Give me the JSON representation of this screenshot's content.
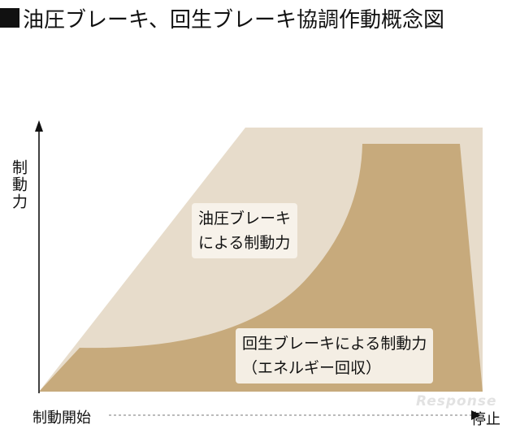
{
  "title": "油圧ブレーキ、回生ブレーキ協調作動概念図",
  "y_axis_label": "制動力",
  "x_axis_start": "制動開始",
  "x_axis_end": "停止",
  "areas": {
    "hydraulic_label_line1": "油圧ブレーキ",
    "hydraulic_label_line2": "による制動力",
    "regenerative_label_line1": "回生ブレーキによる制動力",
    "regenerative_label_line2": "（エネルギー回収）"
  },
  "watermark": "Response",
  "colors": {
    "background": "#ffffff",
    "total_braking_area": "#e7dccb",
    "regenerative_area": "#c7aa7c",
    "axis": "#111111"
  }
}
